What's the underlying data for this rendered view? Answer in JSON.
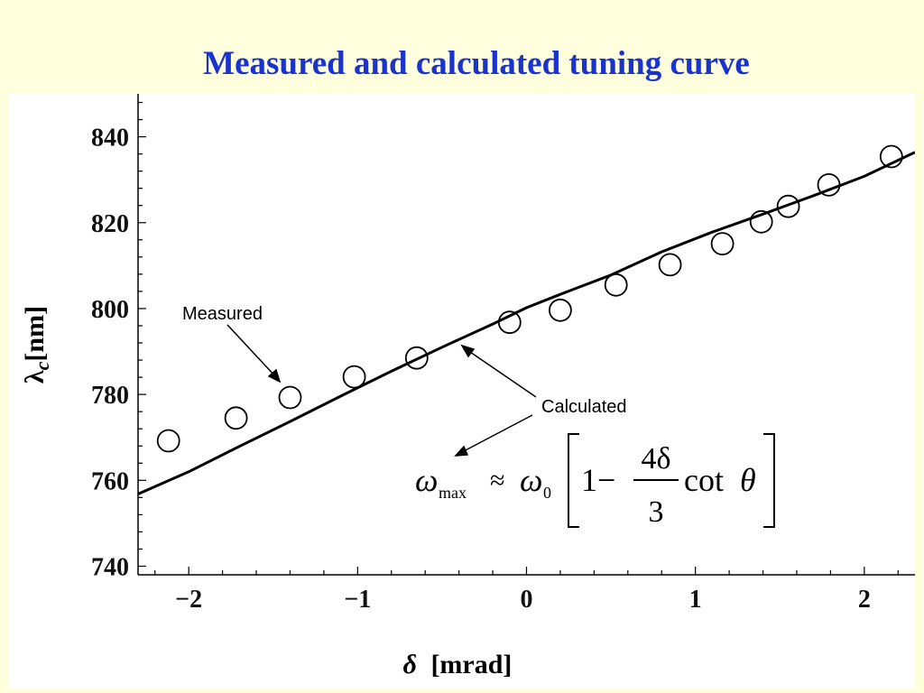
{
  "slide": {
    "title": "Measured and calculated tuning curve"
  },
  "chart_data": {
    "type": "scatter",
    "title": "",
    "xlabel_symbol": "δ",
    "xlabel_unit": "[mrad]",
    "ylabel_symbol": "λ",
    "ylabel_sub": "c",
    "ylabel_unit": "[nm]",
    "xlim": [
      -2.3,
      2.3
    ],
    "ylim": [
      738,
      850
    ],
    "xticks": [
      -2,
      -1,
      0,
      1,
      2
    ],
    "xtick_labels": [
      "−2",
      "−1",
      "0",
      "1",
      "2"
    ],
    "yticks": [
      740,
      760,
      780,
      800,
      820,
      840
    ],
    "ytick_labels": [
      "740",
      "760",
      "780",
      "800",
      "820",
      "840"
    ],
    "grid": false,
    "series": [
      {
        "name": "Measured",
        "marker": "open-circle",
        "x": [
          -2.12,
          -1.72,
          -1.4,
          -1.02,
          -0.65,
          -0.1,
          0.2,
          0.53,
          0.85,
          1.16,
          1.39,
          1.55,
          1.79,
          2.16
        ],
        "y": [
          769.2,
          774.5,
          779.3,
          784.1,
          788.5,
          796.8,
          799.6,
          805.5,
          810.2,
          815.1,
          820.2,
          823.8,
          828.8,
          835.4
        ]
      },
      {
        "name": "Calculated",
        "line": "solid",
        "x": [
          -2.3,
          -2.0,
          -1.7,
          -1.4,
          -1.1,
          -0.8,
          -0.5,
          -0.2,
          0.0,
          0.2,
          0.5,
          0.8,
          1.1,
          1.4,
          1.7,
          2.0,
          2.3
        ],
        "y": [
          756.8,
          762.0,
          767.9,
          773.7,
          779.6,
          785.4,
          791.0,
          796.4,
          800.2,
          803.3,
          807.8,
          813.2,
          817.8,
          822.0,
          826.3,
          830.8,
          836.4
        ]
      }
    ],
    "annotations": {
      "measured": "Measured",
      "calculated": "Calculated",
      "formula": {
        "omega": "ω",
        "sub_max": "max",
        "approx": "≈",
        "sub_0": "0",
        "one_minus": "1−",
        "numerator": "4δ",
        "denominator": "3",
        "cot": "cot",
        "theta": "θ"
      }
    }
  }
}
